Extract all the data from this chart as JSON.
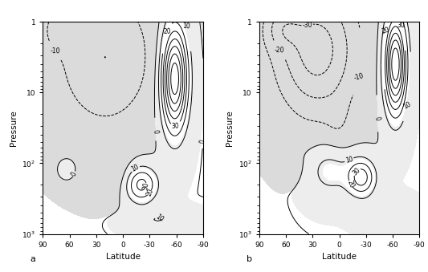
{
  "title_left": "a",
  "title_right": "b",
  "xlabel": "Latitude",
  "ylabel": "Pressure",
  "lat_ticks": [
    90,
    60,
    30,
    0,
    -30,
    -60,
    -90
  ],
  "pressure_ticks": [
    1,
    10,
    100,
    1000
  ],
  "figsize": [
    5.33,
    3.39
  ],
  "dpi": 100
}
